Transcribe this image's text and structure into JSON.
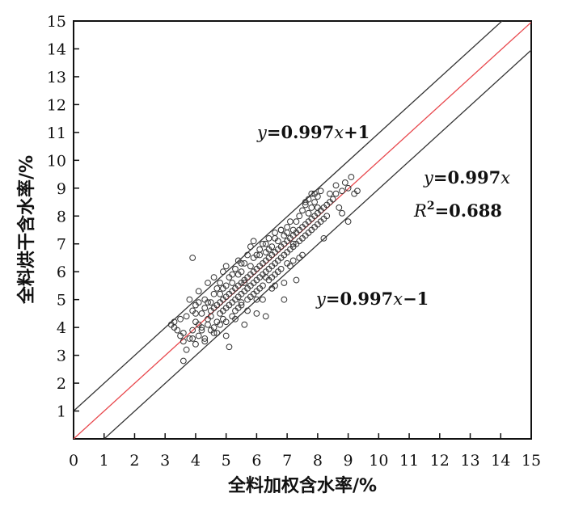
{
  "chart_data": {
    "type": "scatter",
    "xlabel": "全料加权含水率/%",
    "ylabel": "全料烘干含水率/%",
    "xlim": [
      0,
      15
    ],
    "ylim": [
      0,
      15
    ],
    "xticks": [
      "0",
      "1",
      "2",
      "3",
      "4",
      "5",
      "6",
      "7",
      "8",
      "9",
      "10",
      "11",
      "12",
      "13",
      "14",
      "15"
    ],
    "yticks": [
      "1",
      "2",
      "3",
      "4",
      "5",
      "6",
      "7",
      "8",
      "9",
      "10",
      "11",
      "12",
      "13",
      "14",
      "15"
    ],
    "lines": [
      {
        "slope": 0.997,
        "intercept": 0,
        "color": "#e8474c",
        "label": "fit"
      },
      {
        "slope": 0.997,
        "intercept": 1,
        "color": "#333333",
        "label": "upper"
      },
      {
        "slope": 0.997,
        "intercept": -1,
        "color": "#333333",
        "label": "lower"
      }
    ],
    "annotations": {
      "upper_line": {
        "y": "y",
        "eq": "=0.997",
        "x": "x",
        "tail": "+1"
      },
      "fit_line": {
        "y": "y",
        "eq": "=0.997",
        "x": "x",
        "tail": ""
      },
      "r2": {
        "r": "R",
        "sup": "2",
        "eq": "=0.688"
      },
      "lower_line": {
        "y": "y",
        "eq": "=0.997",
        "x": "x",
        "tail": "−1"
      }
    },
    "points": [
      [
        3.2,
        4.1
      ],
      [
        3.3,
        4.0
      ],
      [
        3.4,
        3.9
      ],
      [
        3.5,
        3.7
      ],
      [
        3.5,
        4.3
      ],
      [
        3.6,
        3.5
      ],
      [
        3.6,
        2.8
      ],
      [
        3.7,
        4.4
      ],
      [
        3.7,
        3.2
      ],
      [
        3.8,
        5.0
      ],
      [
        3.8,
        3.6
      ],
      [
        3.9,
        4.6
      ],
      [
        3.9,
        3.9
      ],
      [
        3.9,
        6.5
      ],
      [
        4.0,
        4.2
      ],
      [
        4.0,
        3.4
      ],
      [
        4.0,
        4.8
      ],
      [
        4.1,
        4.1
      ],
      [
        4.1,
        3.7
      ],
      [
        4.1,
        5.3
      ],
      [
        4.2,
        4.5
      ],
      [
        4.2,
        3.9
      ],
      [
        4.2,
        4.0
      ],
      [
        4.3,
        4.7
      ],
      [
        4.3,
        3.6
      ],
      [
        4.3,
        5.0
      ],
      [
        4.4,
        4.3
      ],
      [
        4.4,
        4.1
      ],
      [
        4.4,
        5.6
      ],
      [
        4.5,
        4.6
      ],
      [
        4.5,
        3.9
      ],
      [
        4.5,
        4.9
      ],
      [
        4.5,
        4.4
      ],
      [
        4.6,
        5.2
      ],
      [
        4.6,
        4.0
      ],
      [
        4.6,
        4.7
      ],
      [
        4.6,
        5.8
      ],
      [
        4.7,
        4.8
      ],
      [
        4.7,
        4.2
      ],
      [
        4.7,
        5.4
      ],
      [
        4.7,
        3.8
      ],
      [
        4.8,
        4.9
      ],
      [
        4.8,
        4.5
      ],
      [
        4.8,
        5.6
      ],
      [
        4.8,
        4.1
      ],
      [
        4.9,
        5.0
      ],
      [
        4.9,
        4.6
      ],
      [
        4.9,
        6.0
      ],
      [
        4.9,
        4.3
      ],
      [
        5.0,
        5.1
      ],
      [
        5.0,
        4.7
      ],
      [
        5.0,
        5.5
      ],
      [
        5.0,
        3.7
      ],
      [
        5.0,
        6.2
      ],
      [
        5.1,
        5.2
      ],
      [
        5.1,
        4.8
      ],
      [
        5.1,
        5.8
      ],
      [
        5.1,
        3.3
      ],
      [
        5.2,
        5.3
      ],
      [
        5.2,
        4.9
      ],
      [
        5.2,
        5.6
      ],
      [
        5.2,
        4.4
      ],
      [
        5.3,
        5.4
      ],
      [
        5.3,
        5.0
      ],
      [
        5.3,
        6.1
      ],
      [
        5.3,
        4.6
      ],
      [
        5.4,
        5.5
      ],
      [
        5.4,
        5.1
      ],
      [
        5.4,
        5.9
      ],
      [
        5.4,
        4.7
      ],
      [
        5.4,
        6.4
      ],
      [
        5.5,
        5.6
      ],
      [
        5.5,
        5.2
      ],
      [
        5.5,
        6.0
      ],
      [
        5.5,
        4.9
      ],
      [
        5.6,
        5.7
      ],
      [
        5.6,
        5.3
      ],
      [
        5.6,
        6.3
      ],
      [
        5.6,
        4.1
      ],
      [
        5.7,
        5.8
      ],
      [
        5.7,
        5.4
      ],
      [
        5.7,
        6.6
      ],
      [
        5.7,
        5.0
      ],
      [
        5.8,
        5.9
      ],
      [
        5.8,
        5.5
      ],
      [
        5.8,
        6.9
      ],
      [
        5.8,
        5.1
      ],
      [
        5.8,
        6.2
      ],
      [
        5.9,
        6.0
      ],
      [
        5.9,
        5.6
      ],
      [
        5.9,
        7.1
      ],
      [
        5.9,
        5.2
      ],
      [
        6.0,
        6.1
      ],
      [
        6.0,
        5.7
      ],
      [
        6.0,
        6.6
      ],
      [
        6.0,
        5.3
      ],
      [
        6.0,
        4.5
      ],
      [
        6.1,
        6.2
      ],
      [
        6.1,
        5.8
      ],
      [
        6.1,
        6.8
      ],
      [
        6.1,
        5.4
      ],
      [
        6.2,
        6.3
      ],
      [
        6.2,
        5.9
      ],
      [
        6.2,
        7.0
      ],
      [
        6.2,
        5.5
      ],
      [
        6.3,
        6.4
      ],
      [
        6.3,
        6.0
      ],
      [
        6.3,
        6.7
      ],
      [
        6.3,
        4.4
      ],
      [
        6.4,
        6.5
      ],
      [
        6.4,
        6.1
      ],
      [
        6.4,
        7.2
      ],
      [
        6.4,
        5.7
      ],
      [
        6.5,
        6.6
      ],
      [
        6.5,
        6.2
      ],
      [
        6.5,
        6.9
      ],
      [
        6.5,
        5.8
      ],
      [
        6.6,
        6.7
      ],
      [
        6.6,
        6.3
      ],
      [
        6.6,
        7.4
      ],
      [
        6.6,
        5.9
      ],
      [
        6.7,
        6.8
      ],
      [
        6.7,
        6.4
      ],
      [
        6.7,
        7.1
      ],
      [
        6.7,
        6.0
      ],
      [
        6.8,
        6.9
      ],
      [
        6.8,
        6.5
      ],
      [
        6.8,
        7.5
      ],
      [
        6.8,
        6.1
      ],
      [
        6.9,
        7.0
      ],
      [
        6.9,
        6.6
      ],
      [
        6.9,
        7.3
      ],
      [
        6.9,
        5.0
      ],
      [
        7.0,
        7.1
      ],
      [
        7.0,
        6.7
      ],
      [
        7.0,
        7.6
      ],
      [
        7.0,
        6.3
      ],
      [
        7.1,
        7.2
      ],
      [
        7.1,
        6.8
      ],
      [
        7.1,
        7.8
      ],
      [
        7.2,
        7.3
      ],
      [
        7.2,
        6.9
      ],
      [
        7.2,
        7.5
      ],
      [
        7.3,
        7.4
      ],
      [
        7.3,
        7.0
      ],
      [
        7.3,
        5.7
      ],
      [
        7.4,
        7.5
      ],
      [
        7.4,
        7.1
      ],
      [
        7.4,
        8.0
      ],
      [
        7.5,
        7.6
      ],
      [
        7.5,
        7.2
      ],
      [
        7.5,
        8.2
      ],
      [
        7.6,
        7.7
      ],
      [
        7.6,
        7.3
      ],
      [
        7.6,
        8.4
      ],
      [
        7.7,
        7.8
      ],
      [
        7.7,
        7.4
      ],
      [
        7.7,
        8.6
      ],
      [
        7.8,
        7.9
      ],
      [
        7.8,
        7.5
      ],
      [
        7.8,
        8.8
      ],
      [
        7.9,
        8.0
      ],
      [
        7.9,
        7.6
      ],
      [
        7.9,
        8.5
      ],
      [
        8.0,
        8.1
      ],
      [
        8.0,
        7.7
      ],
      [
        8.0,
        8.7
      ],
      [
        8.1,
        8.2
      ],
      [
        8.1,
        7.8
      ],
      [
        8.1,
        8.9
      ],
      [
        8.2,
        8.3
      ],
      [
        8.2,
        7.9
      ],
      [
        8.3,
        8.4
      ],
      [
        8.3,
        8.0
      ],
      [
        8.4,
        8.5
      ],
      [
        8.5,
        8.6
      ],
      [
        8.6,
        8.8
      ],
      [
        8.6,
        9.1
      ],
      [
        8.7,
        8.3
      ],
      [
        8.8,
        8.9
      ],
      [
        8.9,
        9.2
      ],
      [
        9.0,
        9.0
      ],
      [
        9.0,
        7.8
      ],
      [
        9.1,
        9.4
      ],
      [
        9.2,
        8.8
      ],
      [
        9.3,
        8.9
      ],
      [
        7.6,
        8.5
      ],
      [
        7.9,
        8.8
      ],
      [
        8.0,
        8.3
      ],
      [
        7.2,
        7.0
      ],
      [
        6.3,
        7.0
      ],
      [
        5.9,
        6.5
      ],
      [
        4.4,
        4.9
      ],
      [
        4.9,
        5.4
      ],
      [
        5.2,
        5.9
      ],
      [
        5.5,
        6.3
      ],
      [
        6.1,
        6.6
      ],
      [
        6.6,
        7.2
      ],
      [
        7.3,
        7.8
      ],
      [
        7.7,
        8.1
      ],
      [
        3.3,
        4.2
      ],
      [
        4.0,
        4.5
      ],
      [
        4.8,
        5.2
      ],
      [
        5.6,
        5.6
      ],
      [
        6.4,
        6.8
      ],
      [
        7.0,
        7.4
      ],
      [
        7.8,
        8.3
      ],
      [
        8.4,
        8.8
      ],
      [
        5.0,
        4.2
      ],
      [
        5.7,
        4.6
      ],
      [
        6.2,
        5.0
      ],
      [
        6.9,
        5.6
      ],
      [
        4.3,
        3.5
      ],
      [
        4.6,
        3.8
      ],
      [
        5.3,
        4.3
      ],
      [
        6.6,
        5.5
      ],
      [
        7.5,
        6.6
      ],
      [
        8.2,
        7.2
      ],
      [
        8.8,
        8.1
      ],
      [
        3.6,
        3.8
      ],
      [
        6.8,
        7.5
      ],
      [
        7.4,
        6.5
      ],
      [
        7.1,
        6.2
      ],
      [
        5.5,
        4.8
      ],
      [
        6.0,
        5.0
      ],
      [
        4.1,
        4.9
      ],
      [
        3.9,
        3.6
      ],
      [
        6.3,
        5.8
      ],
      [
        6.5,
        5.4
      ],
      [
        7.2,
        6.4
      ]
    ]
  }
}
